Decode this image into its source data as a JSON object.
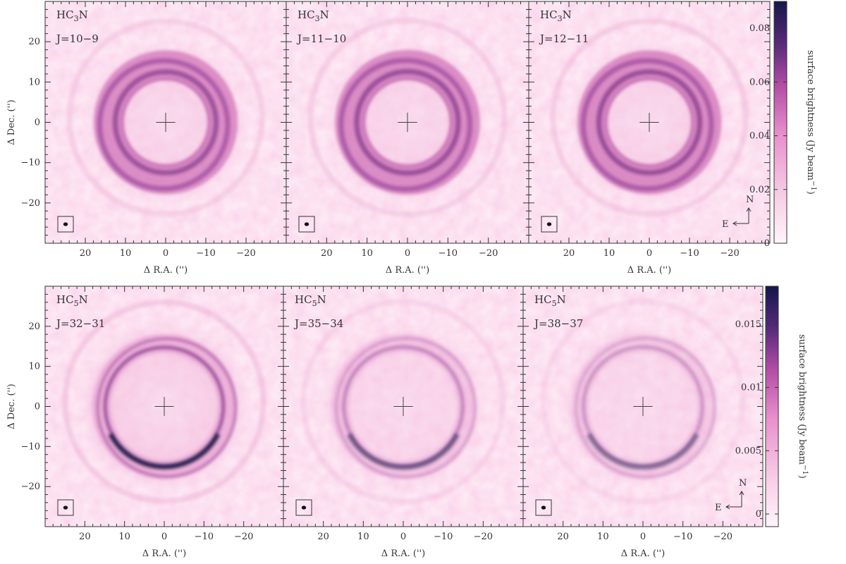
{
  "figure": {
    "colors": {
      "background": "#ffffff",
      "map_low": "#fbeef6",
      "map_mid": "#e07ac0",
      "map_high": "#13174a",
      "ink": "#333333"
    }
  },
  "rows": [
    {
      "molecule_base": "HC",
      "molecule_sub": "3",
      "molecule_end": "N",
      "colorbar": {
        "label": "surface brightness (Jy beam",
        "label_sup": "−1",
        "label_close": ")",
        "range": [
          0,
          0.09
        ],
        "ticks": [
          "0",
          "0.02",
          "0.04",
          "0.06",
          "0.08"
        ],
        "tick_values": [
          0,
          0.02,
          0.04,
          0.06,
          0.08
        ]
      },
      "panels": [
        {
          "transition": "J=10−9",
          "peak_level": 0.78,
          "inner_radius": 11,
          "outer_radius": 16
        },
        {
          "transition": "J=11−10",
          "peak_level": 0.8,
          "inner_radius": 11,
          "outer_radius": 16
        },
        {
          "transition": "J=12−11",
          "peak_level": 0.82,
          "inner_radius": 11,
          "outer_radius": 16
        }
      ]
    },
    {
      "molecule_base": "HC",
      "molecule_sub": "5",
      "molecule_end": "N",
      "colorbar": {
        "label": "surface brightness (Jy beam",
        "label_sup": "−1",
        "label_close": ")",
        "range": [
          -0.001,
          0.018
        ],
        "ticks": [
          "0",
          "0.005",
          "0.01",
          "0.015"
        ],
        "tick_values": [
          0,
          0.005,
          0.01,
          0.015
        ]
      },
      "panels": [
        {
          "transition": "J=32−31",
          "peak_level": 0.95,
          "inner_radius": 14,
          "outer_radius": 17
        },
        {
          "transition": "J=35−34",
          "peak_level": 0.55,
          "inner_radius": 14,
          "outer_radius": 17
        },
        {
          "transition": "J=38−37",
          "peak_level": 0.45,
          "inner_radius": 14,
          "outer_radius": 17
        }
      ]
    }
  ],
  "axes": {
    "xlabel": "Δ R.A. ('')",
    "ylabel": "Δ Dec. ('')",
    "xlim": [
      30,
      -30
    ],
    "ylim": [
      -30,
      30
    ],
    "x_ticks": [
      "20",
      "10",
      "0",
      "−10",
      "−20"
    ],
    "x_tick_values": [
      20,
      10,
      0,
      -10,
      -20
    ],
    "y_ticks": [
      "−20",
      "−10",
      "0",
      "10",
      "20"
    ],
    "y_tick_values": [
      -20,
      -10,
      0,
      10,
      20
    ]
  },
  "compass": {
    "north": "N",
    "east": "E"
  }
}
